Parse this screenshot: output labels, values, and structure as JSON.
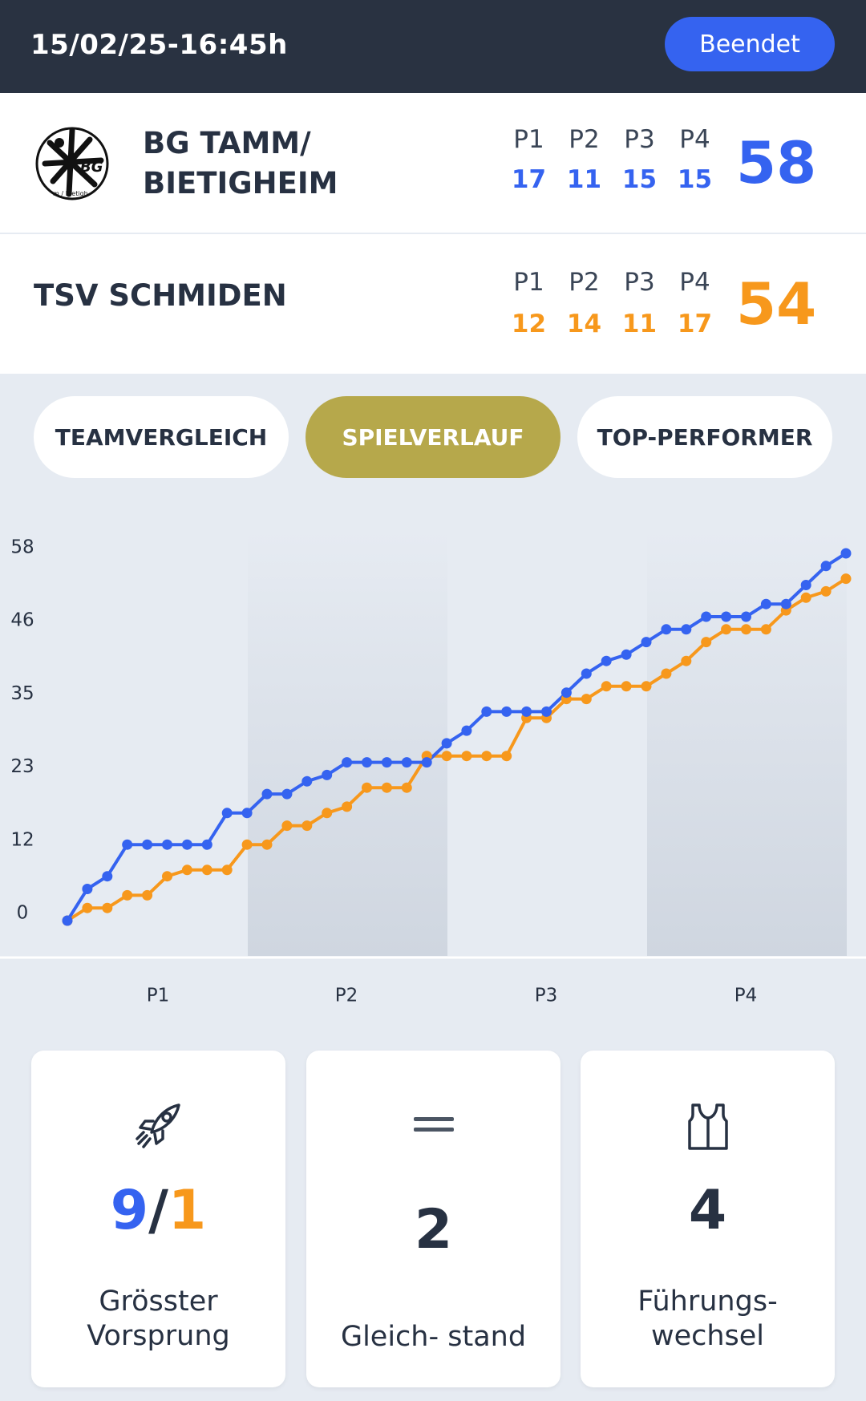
{
  "header": {
    "datetime": "15/02/25-16:45h",
    "status_label": "Beendet"
  },
  "colors": {
    "home": "#3563f0",
    "away": "#f7981c",
    "header_bg": "#293241",
    "active_tab": "#b6a84b"
  },
  "home_team": {
    "name_line1": "BG TAMM/",
    "name_line2": "BIETIGHEIM",
    "logo_text": "BG",
    "logo_subtext": "m / Bietigh",
    "periods": [
      {
        "label": "P1",
        "score": "17"
      },
      {
        "label": "P2",
        "score": "11"
      },
      {
        "label": "P3",
        "score": "15"
      },
      {
        "label": "P4",
        "score": "15"
      }
    ],
    "total": "58"
  },
  "away_team": {
    "name": "TSV SCHMIDEN",
    "periods": [
      {
        "label": "P1",
        "score": "12"
      },
      {
        "label": "P2",
        "score": "14"
      },
      {
        "label": "P3",
        "score": "11"
      },
      {
        "label": "P4",
        "score": "17"
      }
    ],
    "total": "54"
  },
  "tabs": [
    {
      "label": "TEAMVERGLEICH",
      "active": false
    },
    {
      "label": "SPIELVERLAUF",
      "active": true
    },
    {
      "label": "TOP-PERFORMER",
      "active": false
    }
  ],
  "chart_data": {
    "type": "line",
    "y_ticks": [
      "58",
      "46",
      "35",
      "23",
      "12",
      "0"
    ],
    "ylim": [
      0,
      58
    ],
    "x_categories": [
      "P1",
      "P2",
      "P3",
      "P4"
    ],
    "x": [
      0,
      1,
      2,
      3,
      4,
      5,
      6,
      7,
      8,
      9,
      10,
      11,
      12,
      13,
      14,
      15,
      16,
      17,
      18,
      19,
      20,
      21,
      22,
      23,
      24,
      25,
      26,
      27,
      28,
      29,
      30,
      31,
      32,
      33,
      34,
      35,
      36,
      37,
      38,
      39
    ],
    "series": [
      {
        "team": "home",
        "values": [
          0,
          5,
          7,
          12,
          12,
          12,
          12,
          12,
          17,
          17,
          20,
          20,
          22,
          23,
          25,
          25,
          25,
          25,
          25,
          28,
          30,
          33,
          33,
          33,
          33,
          36,
          39,
          41,
          42,
          44,
          46,
          46,
          48,
          48,
          48,
          50,
          50,
          53,
          56,
          58
        ]
      },
      {
        "team": "away",
        "values": [
          0,
          2,
          2,
          4,
          4,
          7,
          8,
          8,
          8,
          12,
          12,
          15,
          15,
          17,
          18,
          21,
          21,
          21,
          26,
          26,
          26,
          26,
          26,
          32,
          32,
          35,
          35,
          37,
          37,
          37,
          39,
          41,
          44,
          46,
          46,
          46,
          49,
          51,
          52,
          54
        ]
      }
    ]
  },
  "stats": [
    {
      "icon": "rocket-icon",
      "value_home": "9",
      "value_sep": "/",
      "value_away": "1",
      "label_line1": "Grösster",
      "label_line2": "Vorsprung"
    },
    {
      "icon": "equals-icon",
      "value": "2",
      "label_line1": "Gleich- stand"
    },
    {
      "icon": "jersey-icon",
      "value": "4",
      "label_line1": "Führungs-",
      "label_line2": "wechsel"
    }
  ]
}
